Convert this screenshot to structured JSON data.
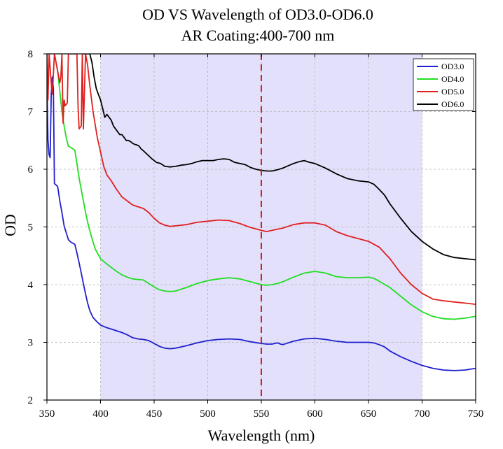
{
  "chart_data": {
    "type": "line",
    "title": "OD VS Wavelength of OD3.0-OD6.0",
    "subtitle": "AR Coating:400-700 nm",
    "xlabel": "Wavelength (nm)",
    "ylabel": "OD",
    "xlim": [
      350,
      750
    ],
    "ylim": [
      2,
      8
    ],
    "xticks": [
      350,
      400,
      450,
      500,
      550,
      600,
      650,
      700,
      750
    ],
    "yticks": [
      2,
      3,
      4,
      5,
      6,
      7,
      8
    ],
    "grid": true,
    "legend_position": "top-right",
    "shaded_band": {
      "x": [
        400,
        700
      ],
      "color": "#e3e0fb"
    },
    "reference_line": {
      "x": 550,
      "color": "#d62020",
      "style": "dashed"
    },
    "series": [
      {
        "name": "OD3.0",
        "color": "#1f1fcc",
        "points": [
          [
            350,
            7.5
          ],
          [
            351,
            6.5
          ],
          [
            352,
            6.25
          ],
          [
            353,
            6.2
          ],
          [
            354,
            7.3
          ],
          [
            355,
            7.6
          ],
          [
            356,
            7.4
          ],
          [
            357,
            5.75
          ],
          [
            359,
            5.72
          ],
          [
            360,
            5.7
          ],
          [
            362,
            5.45
          ],
          [
            364,
            5.25
          ],
          [
            366,
            5.02
          ],
          [
            368,
            4.9
          ],
          [
            370,
            4.78
          ],
          [
            372,
            4.74
          ],
          [
            374,
            4.72
          ],
          [
            376,
            4.7
          ],
          [
            378,
            4.55
          ],
          [
            380,
            4.38
          ],
          [
            382,
            4.2
          ],
          [
            384,
            4.02
          ],
          [
            386,
            3.84
          ],
          [
            388,
            3.68
          ],
          [
            390,
            3.55
          ],
          [
            393,
            3.43
          ],
          [
            396,
            3.37
          ],
          [
            400,
            3.3
          ],
          [
            405,
            3.26
          ],
          [
            410,
            3.23
          ],
          [
            415,
            3.2
          ],
          [
            420,
            3.17
          ],
          [
            425,
            3.13
          ],
          [
            430,
            3.08
          ],
          [
            435,
            3.06
          ],
          [
            440,
            3.05
          ],
          [
            445,
            3.03
          ],
          [
            450,
            2.98
          ],
          [
            455,
            2.93
          ],
          [
            460,
            2.9
          ],
          [
            465,
            2.89
          ],
          [
            470,
            2.9
          ],
          [
            480,
            2.94
          ],
          [
            490,
            2.99
          ],
          [
            500,
            3.03
          ],
          [
            510,
            3.05
          ],
          [
            520,
            3.06
          ],
          [
            530,
            3.05
          ],
          [
            540,
            3.01
          ],
          [
            550,
            2.98
          ],
          [
            555,
            2.97
          ],
          [
            560,
            2.97
          ],
          [
            565,
            2.99
          ],
          [
            568,
            2.97
          ],
          [
            570,
            2.96
          ],
          [
            575,
            2.99
          ],
          [
            580,
            3.02
          ],
          [
            585,
            3.04
          ],
          [
            590,
            3.06
          ],
          [
            600,
            3.07
          ],
          [
            610,
            3.05
          ],
          [
            620,
            3.02
          ],
          [
            630,
            3.0
          ],
          [
            640,
            3.0
          ],
          [
            650,
            3.0
          ],
          [
            655,
            2.99
          ],
          [
            660,
            2.96
          ],
          [
            665,
            2.92
          ],
          [
            670,
            2.85
          ],
          [
            680,
            2.75
          ],
          [
            690,
            2.67
          ],
          [
            700,
            2.6
          ],
          [
            710,
            2.55
          ],
          [
            720,
            2.52
          ],
          [
            730,
            2.51
          ],
          [
            740,
            2.52
          ],
          [
            750,
            2.55
          ]
        ]
      },
      {
        "name": "OD4.0",
        "color": "#22dd22",
        "points": [
          [
            357,
            8.0
          ],
          [
            360,
            7.7
          ],
          [
            362,
            7.35
          ],
          [
            364,
            7.0
          ],
          [
            366,
            6.75
          ],
          [
            368,
            6.55
          ],
          [
            370,
            6.4
          ],
          [
            373,
            6.37
          ],
          [
            376,
            6.33
          ],
          [
            378,
            6.1
          ],
          [
            380,
            5.85
          ],
          [
            383,
            5.55
          ],
          [
            386,
            5.25
          ],
          [
            389,
            5.0
          ],
          [
            392,
            4.8
          ],
          [
            395,
            4.62
          ],
          [
            400,
            4.45
          ],
          [
            405,
            4.37
          ],
          [
            410,
            4.3
          ],
          [
            415,
            4.23
          ],
          [
            420,
            4.17
          ],
          [
            425,
            4.13
          ],
          [
            430,
            4.1
          ],
          [
            435,
            4.09
          ],
          [
            440,
            4.08
          ],
          [
            445,
            4.02
          ],
          [
            450,
            3.96
          ],
          [
            455,
            3.91
          ],
          [
            460,
            3.89
          ],
          [
            465,
            3.88
          ],
          [
            470,
            3.89
          ],
          [
            480,
            3.95
          ],
          [
            490,
            4.02
          ],
          [
            500,
            4.07
          ],
          [
            510,
            4.1
          ],
          [
            520,
            4.12
          ],
          [
            530,
            4.1
          ],
          [
            540,
            4.05
          ],
          [
            550,
            4.0
          ],
          [
            555,
            3.99
          ],
          [
            560,
            4.0
          ],
          [
            565,
            4.02
          ],
          [
            570,
            4.05
          ],
          [
            580,
            4.13
          ],
          [
            590,
            4.2
          ],
          [
            600,
            4.23
          ],
          [
            610,
            4.2
          ],
          [
            620,
            4.14
          ],
          [
            630,
            4.12
          ],
          [
            640,
            4.12
          ],
          [
            650,
            4.13
          ],
          [
            655,
            4.11
          ],
          [
            660,
            4.06
          ],
          [
            670,
            3.95
          ],
          [
            680,
            3.8
          ],
          [
            690,
            3.65
          ],
          [
            700,
            3.53
          ],
          [
            710,
            3.45
          ],
          [
            720,
            3.41
          ],
          [
            730,
            3.4
          ],
          [
            740,
            3.42
          ],
          [
            750,
            3.45
          ]
        ]
      },
      {
        "name": "OD5.0",
        "color": "#e02020",
        "points": [
          [
            350,
            8.0
          ],
          [
            351,
            7.2
          ],
          [
            352,
            8.0
          ],
          [
            354,
            7.5
          ],
          [
            355,
            7.3
          ],
          [
            357,
            8.0
          ],
          [
            360,
            7.7
          ],
          [
            362,
            7.5
          ],
          [
            363,
            7.6
          ],
          [
            364,
            8.0
          ],
          [
            365,
            6.8
          ],
          [
            366,
            7.2
          ],
          [
            367,
            7.1
          ],
          [
            369,
            7.15
          ],
          [
            370,
            8.0
          ],
          [
            378,
            8.0
          ],
          [
            379,
            7.1
          ],
          [
            380,
            6.7
          ],
          [
            382,
            6.75
          ],
          [
            383,
            8.0
          ],
          [
            384,
            6.7
          ],
          [
            386,
            8.0
          ],
          [
            388,
            7.8
          ],
          [
            390,
            7.45
          ],
          [
            393,
            7.0
          ],
          [
            397,
            6.55
          ],
          [
            400,
            6.3
          ],
          [
            403,
            6.05
          ],
          [
            406,
            5.9
          ],
          [
            410,
            5.8
          ],
          [
            415,
            5.65
          ],
          [
            420,
            5.52
          ],
          [
            425,
            5.45
          ],
          [
            430,
            5.38
          ],
          [
            435,
            5.35
          ],
          [
            440,
            5.32
          ],
          [
            445,
            5.25
          ],
          [
            450,
            5.15
          ],
          [
            455,
            5.07
          ],
          [
            460,
            5.03
          ],
          [
            465,
            5.01
          ],
          [
            470,
            5.02
          ],
          [
            480,
            5.04
          ],
          [
            490,
            5.08
          ],
          [
            500,
            5.1
          ],
          [
            510,
            5.12
          ],
          [
            520,
            5.11
          ],
          [
            530,
            5.06
          ],
          [
            540,
            4.99
          ],
          [
            550,
            4.94
          ],
          [
            555,
            4.92
          ],
          [
            560,
            4.94
          ],
          [
            570,
            4.98
          ],
          [
            580,
            5.04
          ],
          [
            590,
            5.07
          ],
          [
            600,
            5.07
          ],
          [
            610,
            5.03
          ],
          [
            620,
            4.92
          ],
          [
            630,
            4.85
          ],
          [
            640,
            4.8
          ],
          [
            650,
            4.75
          ],
          [
            660,
            4.65
          ],
          [
            670,
            4.45
          ],
          [
            680,
            4.2
          ],
          [
            690,
            4.0
          ],
          [
            700,
            3.85
          ],
          [
            710,
            3.75
          ],
          [
            720,
            3.72
          ],
          [
            730,
            3.7
          ],
          [
            740,
            3.68
          ],
          [
            750,
            3.66
          ]
        ]
      },
      {
        "name": "OD6.0",
        "color": "#000000",
        "points": [
          [
            384,
            8.0
          ],
          [
            386,
            8.0
          ],
          [
            388,
            8.0
          ],
          [
            390,
            8.0
          ],
          [
            392,
            7.85
          ],
          [
            394,
            7.6
          ],
          [
            396,
            7.4
          ],
          [
            398,
            7.3
          ],
          [
            400,
            7.2
          ],
          [
            402,
            7.05
          ],
          [
            404,
            6.9
          ],
          [
            406,
            6.95
          ],
          [
            408,
            6.9
          ],
          [
            410,
            6.85
          ],
          [
            412,
            6.75
          ],
          [
            414,
            6.7
          ],
          [
            416,
            6.65
          ],
          [
            418,
            6.6
          ],
          [
            420,
            6.6
          ],
          [
            422,
            6.55
          ],
          [
            424,
            6.5
          ],
          [
            426,
            6.5
          ],
          [
            428,
            6.48
          ],
          [
            430,
            6.45
          ],
          [
            432,
            6.43
          ],
          [
            434,
            6.42
          ],
          [
            436,
            6.4
          ],
          [
            438,
            6.35
          ],
          [
            440,
            6.32
          ],
          [
            444,
            6.25
          ],
          [
            448,
            6.18
          ],
          [
            452,
            6.12
          ],
          [
            456,
            6.1
          ],
          [
            460,
            6.05
          ],
          [
            465,
            6.04
          ],
          [
            470,
            6.05
          ],
          [
            475,
            6.07
          ],
          [
            480,
            6.08
          ],
          [
            485,
            6.1
          ],
          [
            490,
            6.13
          ],
          [
            495,
            6.15
          ],
          [
            500,
            6.15
          ],
          [
            505,
            6.15
          ],
          [
            510,
            6.17
          ],
          [
            515,
            6.18
          ],
          [
            520,
            6.17
          ],
          [
            525,
            6.12
          ],
          [
            530,
            6.1
          ],
          [
            535,
            6.08
          ],
          [
            540,
            6.03
          ],
          [
            545,
            6.0
          ],
          [
            550,
            5.98
          ],
          [
            555,
            5.97
          ],
          [
            560,
            5.97
          ],
          [
            565,
            5.99
          ],
          [
            570,
            6.02
          ],
          [
            575,
            6.06
          ],
          [
            580,
            6.1
          ],
          [
            585,
            6.13
          ],
          [
            590,
            6.15
          ],
          [
            595,
            6.12
          ],
          [
            600,
            6.1
          ],
          [
            610,
            6.02
          ],
          [
            620,
            5.92
          ],
          [
            630,
            5.84
          ],
          [
            640,
            5.8
          ],
          [
            650,
            5.78
          ],
          [
            655,
            5.74
          ],
          [
            660,
            5.65
          ],
          [
            665,
            5.55
          ],
          [
            670,
            5.4
          ],
          [
            680,
            5.15
          ],
          [
            690,
            4.92
          ],
          [
            700,
            4.75
          ],
          [
            710,
            4.62
          ],
          [
            720,
            4.52
          ],
          [
            730,
            4.47
          ],
          [
            740,
            4.45
          ],
          [
            750,
            4.43
          ]
        ]
      }
    ]
  }
}
